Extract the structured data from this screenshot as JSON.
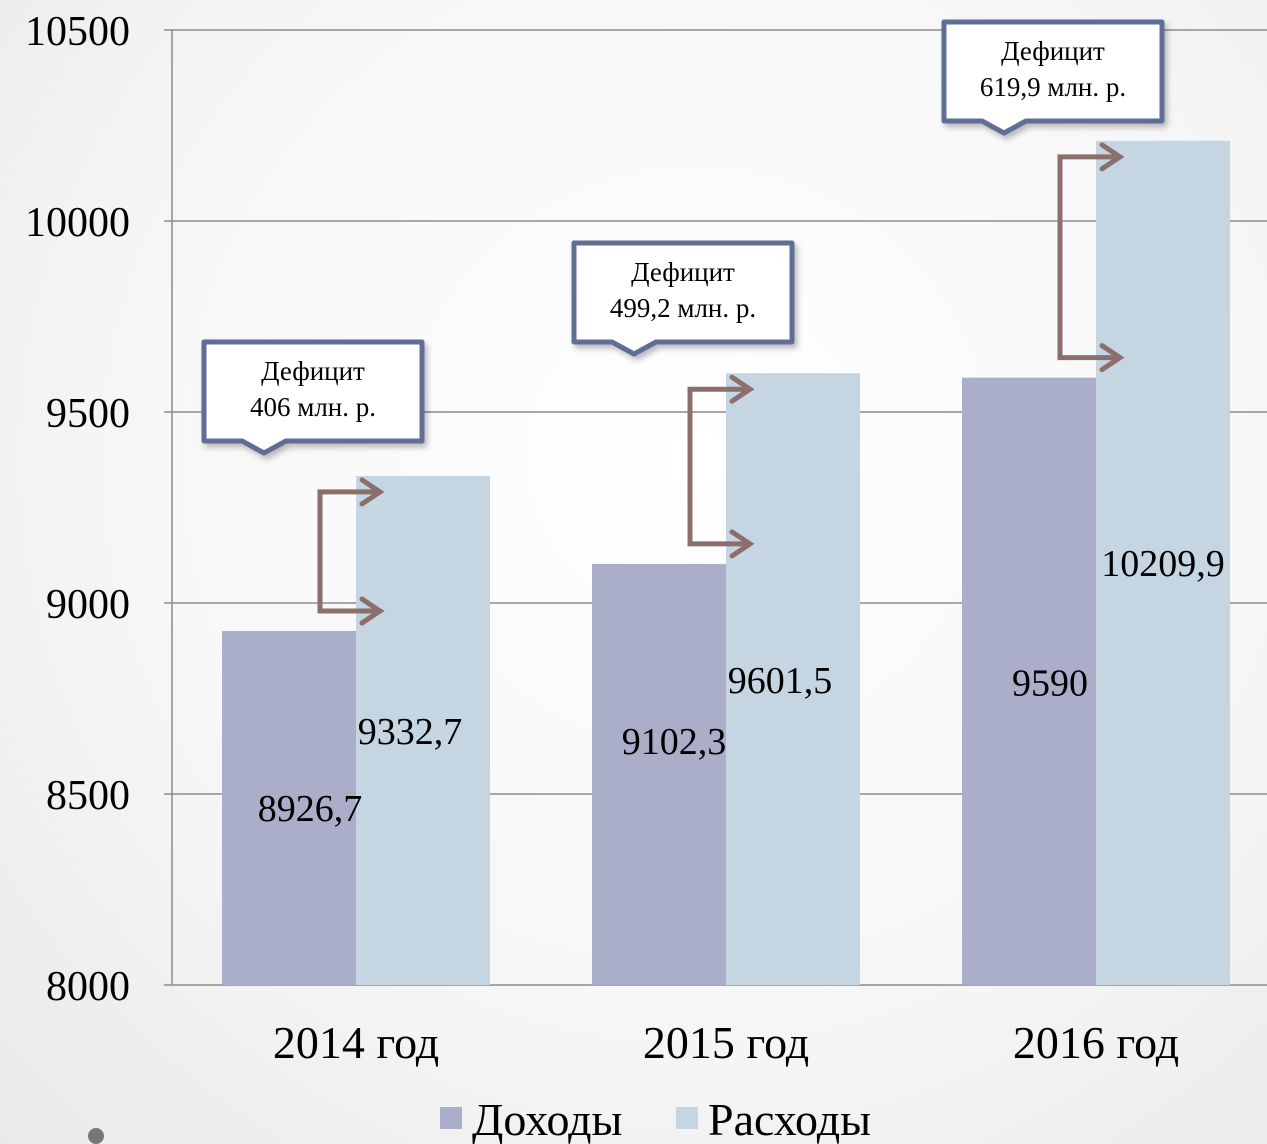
{
  "chart_data": {
    "type": "bar",
    "categories": [
      "2014 год",
      "2015 год",
      "2016 год"
    ],
    "series": [
      {
        "name": "Доходы",
        "values": [
          8926.7,
          9102.3,
          9590
        ],
        "labels": [
          "8926,7",
          "9102,3",
          "9590"
        ],
        "color": "#aaaec8"
      },
      {
        "name": "Расходы",
        "values": [
          9332.7,
          9601.5,
          10209.9
        ],
        "labels": [
          "9332,7",
          "9601,5",
          "10209,9"
        ],
        "color": "#c5d5e1"
      }
    ],
    "ylim": [
      8000,
      10500
    ],
    "yticks": [
      "8000",
      "8500",
      "9000",
      "9500",
      "10000",
      "10500"
    ],
    "grid": true,
    "legend": "bottom",
    "annotations": [
      {
        "category": "2014 год",
        "line1": "Дефицит",
        "line2": "406 млн. р."
      },
      {
        "category": "2015 год",
        "line1": "Дефицит",
        "line2": "499,2 млн. р."
      },
      {
        "category": "2016 год",
        "line1": "Дефицит",
        "line2": "619,9 млн. р."
      }
    ],
    "colors": {
      "callout_border": "#5f6e95",
      "arrow": "#8a6f6c",
      "grid": "#8c8c8c"
    }
  }
}
